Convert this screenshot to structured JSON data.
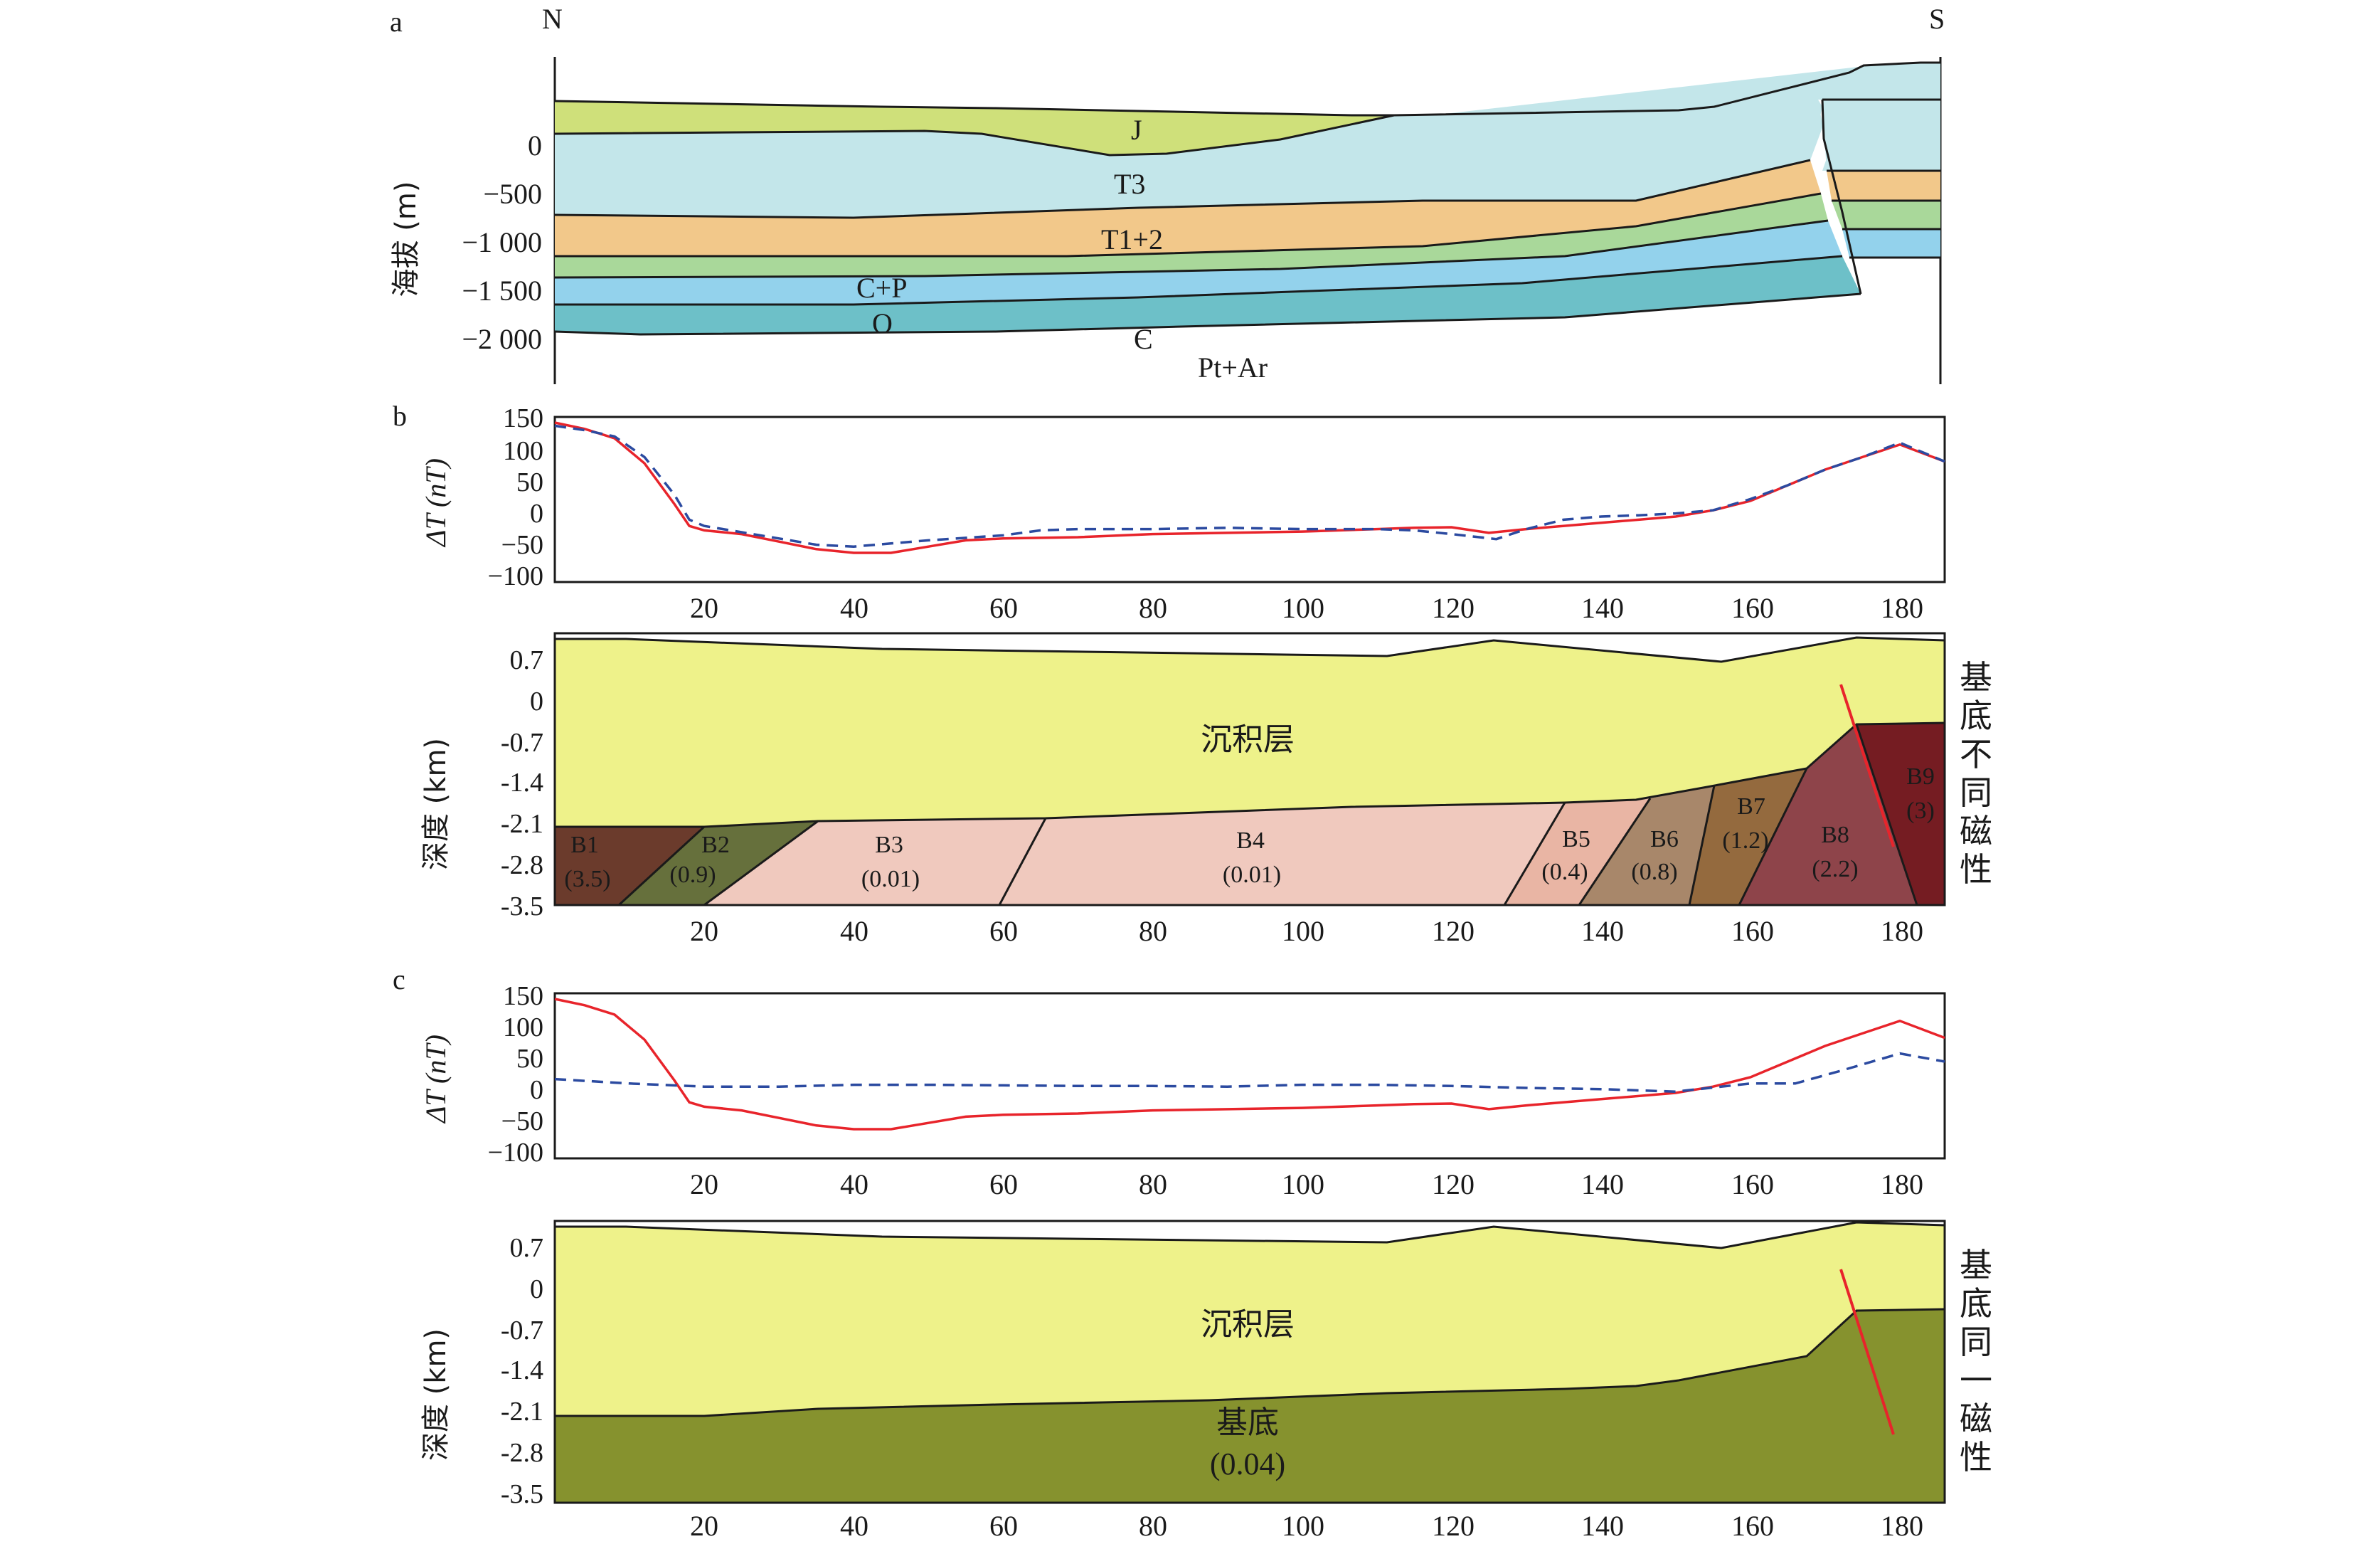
{
  "panels": {
    "a": {
      "label": "a",
      "north": "N",
      "south": "S",
      "ylabel": "海拔 (m)",
      "yticks": [
        "0",
        "−500",
        "−1 000",
        "−1 500",
        "−2 000"
      ],
      "yvalues": [
        0,
        -500,
        -1000,
        -1500,
        -2000
      ],
      "layers": [
        {
          "label": "J",
          "color": "#cfe07a"
        },
        {
          "label": "T3",
          "color": "#c3e6ea"
        },
        {
          "label": "T1+2",
          "color": "#f2c88a"
        },
        {
          "label": "C+P",
          "color": "#a9d89a"
        },
        {
          "label": "O",
          "color": "#93d2ec"
        },
        {
          "label": "Є",
          "color": "#6dc0c8"
        },
        {
          "label": "Pt+Ar",
          "color": "#ffffff"
        }
      ]
    },
    "b": {
      "label": "b",
      "profile_ylabel": "ΔT (nT)",
      "profile_yticks": [
        "150",
        "100",
        "50",
        "0",
        "−50",
        "−100"
      ],
      "xticks": [
        "20",
        "40",
        "60",
        "80",
        "100",
        "120",
        "140",
        "160",
        "180"
      ],
      "model_ylabel": "深度 (km)",
      "model_yticks": [
        "0.7",
        "0",
        "-0.7",
        "-1.4",
        "-2.1",
        "-2.8",
        "-3.5"
      ],
      "sediment_label": "沉积层",
      "sediment_color": "#eef28a",
      "side_note": [
        "基",
        "底",
        "不",
        "同",
        "磁",
        "性"
      ],
      "blocks": [
        {
          "name": "B1",
          "value": "(3.5)",
          "color": "#6b3b2c"
        },
        {
          "name": "B2",
          "value": "(0.9)",
          "color": "#66703c"
        },
        {
          "name": "B3",
          "value": "(0.01)",
          "color": "#f0c9be"
        },
        {
          "name": "B4",
          "value": "(0.01)",
          "color": "#f0c9be"
        },
        {
          "name": "B5",
          "value": "(0.4)",
          "color": "#e9b5a4"
        },
        {
          "name": "B6",
          "value": "(0.8)",
          "color": "#a8876a"
        },
        {
          "name": "B7",
          "value": "(1.2)",
          "color": "#946a3e"
        },
        {
          "name": "B8",
          "value": "(2.2)",
          "color": "#8e444a"
        },
        {
          "name": "B9",
          "value": "(3)",
          "color": "#751c22"
        }
      ]
    },
    "c": {
      "label": "c",
      "profile_ylabel": "ΔT (nT)",
      "profile_yticks": [
        "150",
        "100",
        "50",
        "0",
        "−50",
        "−100"
      ],
      "xticks": [
        "20",
        "40",
        "60",
        "80",
        "100",
        "120",
        "140",
        "160",
        "180"
      ],
      "model_ylabel": "深度 (km)",
      "model_yticks": [
        "0.7",
        "0",
        "-0.7",
        "-1.4",
        "-2.1",
        "-2.8",
        "-3.5"
      ],
      "sediment_label": "沉积层",
      "sediment_color": "#eef28a",
      "basement_label": "基底",
      "basement_value": "(0.04)",
      "basement_color": "#86922e",
      "side_note": [
        "基",
        "底",
        "同",
        "一",
        "磁",
        "性"
      ]
    }
  },
  "chart_data": [
    {
      "type": "line",
      "panel": "b-profile",
      "ylabel": "ΔT (nT)",
      "ylim": [
        -100,
        150
      ],
      "xlim": [
        0,
        186
      ],
      "series": [
        {
          "style": "solid",
          "color": "#e8242b",
          "x": [
            0,
            4,
            8,
            12,
            16,
            18,
            20,
            25,
            30,
            35,
            40,
            45,
            50,
            55,
            60,
            70,
            80,
            90,
            100,
            110,
            115,
            120,
            125,
            130,
            140,
            150,
            155,
            160,
            165,
            170,
            175,
            180,
            186
          ],
          "y": [
            150,
            140,
            125,
            85,
            20,
            -15,
            -22,
            -28,
            -40,
            -52,
            -58,
            -58,
            -48,
            -38,
            -35,
            -33,
            -28,
            -26,
            -24,
            -20,
            -18,
            -17,
            -26,
            -20,
            -10,
            0,
            10,
            25,
            50,
            75,
            95,
            115,
            88
          ]
        },
        {
          "style": "dashed",
          "color": "#2b4aa0",
          "x": [
            0,
            4,
            8,
            12,
            16,
            18,
            20,
            25,
            30,
            35,
            40,
            45,
            50,
            60,
            65,
            70,
            80,
            90,
            100,
            110,
            115,
            120,
            126,
            130,
            135,
            140,
            145,
            150,
            155,
            160,
            165,
            170,
            175,
            180,
            186
          ],
          "y": [
            145,
            138,
            128,
            95,
            35,
            -5,
            -15,
            -25,
            -35,
            -45,
            -48,
            -43,
            -38,
            -30,
            -22,
            -20,
            -20,
            -18,
            -20,
            -20,
            -22,
            -28,
            -36,
            -20,
            -5,
            0,
            2,
            5,
            10,
            28,
            50,
            75,
            95,
            118,
            88
          ]
        }
      ]
    },
    {
      "type": "line",
      "panel": "c-profile",
      "ylabel": "ΔT (nT)",
      "ylim": [
        -100,
        150
      ],
      "xlim": [
        0,
        186
      ],
      "series": [
        {
          "style": "solid",
          "color": "#e8242b",
          "x": [
            0,
            4,
            8,
            12,
            16,
            18,
            20,
            25,
            30,
            35,
            40,
            45,
            50,
            55,
            60,
            70,
            80,
            90,
            100,
            110,
            115,
            120,
            125,
            130,
            140,
            150,
            155,
            160,
            165,
            170,
            175,
            180,
            186
          ],
          "y": [
            150,
            140,
            125,
            85,
            20,
            -15,
            -22,
            -28,
            -40,
            -52,
            -58,
            -58,
            -48,
            -38,
            -35,
            -33,
            -28,
            -26,
            -24,
            -20,
            -18,
            -17,
            -26,
            -20,
            -10,
            0,
            10,
            25,
            50,
            75,
            95,
            115,
            88
          ]
        },
        {
          "style": "dashed",
          "color": "#2b4aa0",
          "x": [
            0,
            10,
            20,
            30,
            40,
            50,
            60,
            70,
            80,
            90,
            100,
            110,
            120,
            130,
            140,
            150,
            160,
            166,
            172,
            180,
            186
          ],
          "y": [
            22,
            15,
            10,
            10,
            13,
            13,
            12,
            11,
            11,
            10,
            13,
            13,
            11,
            8,
            6,
            2,
            15,
            15,
            35,
            63,
            50
          ]
        }
      ]
    }
  ]
}
